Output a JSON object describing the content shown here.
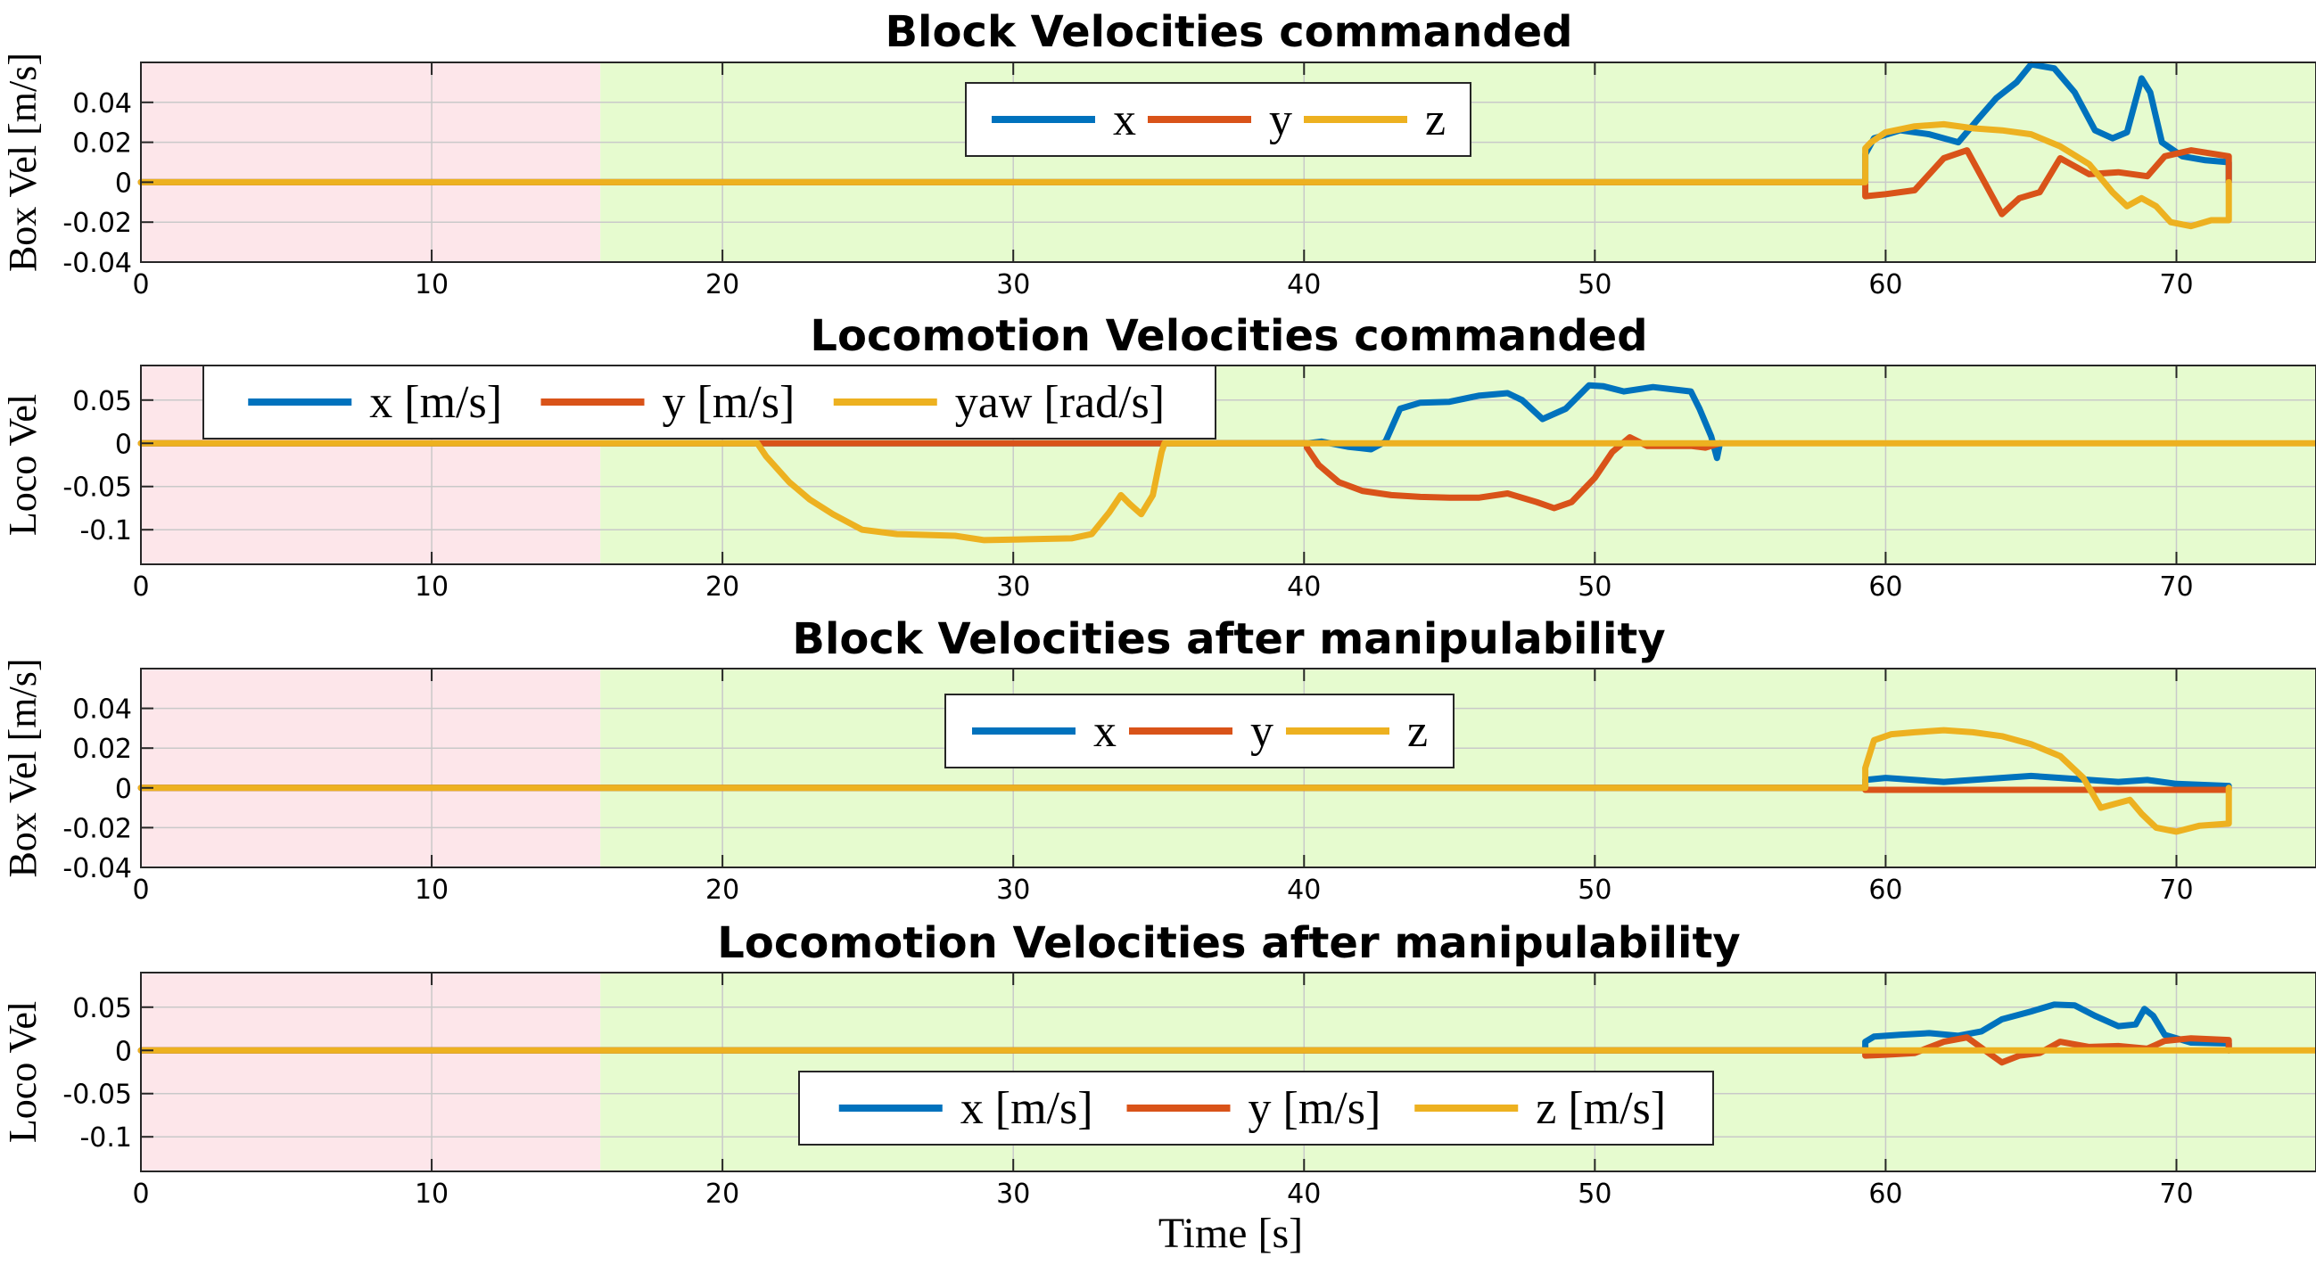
{
  "figure": {
    "xlabel": "Time [s]"
  },
  "colors": {
    "series_x": "#0072BD",
    "series_y": "#D95319",
    "series_z": "#EDB120",
    "region_red": "#FDE6EA",
    "region_green": "#E6FBCF"
  },
  "chart_data": [
    {
      "type": "line",
      "title": "Block Velocities commanded",
      "ylabel": "Box Vel [m/s]",
      "xlabel": "",
      "xlim": [
        0,
        74.8
      ],
      "ylim": [
        -0.04,
        0.06
      ],
      "xticks": [
        0,
        10,
        20,
        30,
        40,
        50,
        60,
        70
      ],
      "yticks": [
        -0.04,
        -0.02,
        0,
        0.02,
        0.04
      ],
      "ytick_labels": [
        "-0.04",
        "-0.02",
        "0",
        "0.02",
        "0.04"
      ],
      "grid": true,
      "legend_position": "top-center",
      "shaded_regions": [
        {
          "x0": 0,
          "x1": 15.8,
          "color": "red"
        },
        {
          "x0": 15.8,
          "x1": 74.8,
          "color": "green"
        }
      ],
      "series": [
        {
          "name": "x",
          "color": "series_x",
          "points": [
            [
              0,
              0
            ],
            [
              59.3,
              0
            ],
            [
              59.3,
              0.014
            ],
            [
              59.6,
              0.022
            ],
            [
              60.5,
              0.026
            ],
            [
              61.5,
              0.024
            ],
            [
              62.5,
              0.02
            ],
            [
              63.2,
              0.032
            ],
            [
              63.8,
              0.042
            ],
            [
              64.5,
              0.05
            ],
            [
              65.0,
              0.059
            ],
            [
              65.8,
              0.057
            ],
            [
              66.5,
              0.045
            ],
            [
              67.2,
              0.026
            ],
            [
              67.8,
              0.022
            ],
            [
              68.3,
              0.025
            ],
            [
              68.8,
              0.052
            ],
            [
              69.1,
              0.045
            ],
            [
              69.5,
              0.02
            ],
            [
              70.2,
              0.013
            ],
            [
              71.0,
              0.011
            ],
            [
              71.8,
              0.01
            ],
            [
              71.8,
              0
            ]
          ]
        },
        {
          "name": "y",
          "color": "series_y",
          "points": [
            [
              0,
              0
            ],
            [
              59.3,
              0
            ],
            [
              59.3,
              -0.007
            ],
            [
              60.0,
              -0.006
            ],
            [
              61.0,
              -0.004
            ],
            [
              62.0,
              0.012
            ],
            [
              62.8,
              0.016
            ],
            [
              63.4,
              0.0
            ],
            [
              64.0,
              -0.016
            ],
            [
              64.6,
              -0.008
            ],
            [
              65.3,
              -0.005
            ],
            [
              66.0,
              0.012
            ],
            [
              67.0,
              0.004
            ],
            [
              68.0,
              0.005
            ],
            [
              69.0,
              0.003
            ],
            [
              69.6,
              0.013
            ],
            [
              70.5,
              0.016
            ],
            [
              71.8,
              0.013
            ],
            [
              71.8,
              0
            ]
          ]
        },
        {
          "name": "z",
          "color": "series_z",
          "points": [
            [
              0,
              0
            ],
            [
              59.3,
              0
            ],
            [
              59.3,
              0.017
            ],
            [
              59.5,
              0.02
            ],
            [
              60.0,
              0.025
            ],
            [
              61.0,
              0.028
            ],
            [
              62.0,
              0.029
            ],
            [
              63.0,
              0.027
            ],
            [
              64.0,
              0.026
            ],
            [
              65.0,
              0.024
            ],
            [
              66.0,
              0.018
            ],
            [
              67.0,
              0.009
            ],
            [
              67.8,
              -0.005
            ],
            [
              68.3,
              -0.012
            ],
            [
              68.8,
              -0.008
            ],
            [
              69.3,
              -0.012
            ],
            [
              69.8,
              -0.02
            ],
            [
              70.5,
              -0.022
            ],
            [
              71.2,
              -0.019
            ],
            [
              71.8,
              -0.019
            ],
            [
              71.8,
              0
            ]
          ]
        }
      ]
    },
    {
      "type": "line",
      "title": "Locomotion Velocities commanded",
      "ylabel": "Loco Vel",
      "xlabel": "",
      "xlim": [
        0,
        74.8
      ],
      "ylim": [
        -0.14,
        0.09
      ],
      "xticks": [
        0,
        10,
        20,
        30,
        40,
        50,
        60,
        70
      ],
      "yticks": [
        -0.1,
        -0.05,
        0,
        0.05
      ],
      "ytick_labels": [
        "-0.1",
        "-0.05",
        "0",
        "0.05"
      ],
      "grid": true,
      "legend_position": "top-left",
      "shaded_regions": [
        {
          "x0": 0,
          "x1": 15.8,
          "color": "red"
        },
        {
          "x0": 15.8,
          "x1": 74.8,
          "color": "green"
        }
      ],
      "series": [
        {
          "name": "x [m/s]",
          "color": "series_x",
          "points": [
            [
              0,
              0
            ],
            [
              40.1,
              0
            ],
            [
              40.6,
              0.002
            ],
            [
              41.5,
              -0.004
            ],
            [
              42.3,
              -0.007
            ],
            [
              42.8,
              0.002
            ],
            [
              43.3,
              0.04
            ],
            [
              44.0,
              0.047
            ],
            [
              45.0,
              0.048
            ],
            [
              46.0,
              0.055
            ],
            [
              47.0,
              0.058
            ],
            [
              47.5,
              0.05
            ],
            [
              48.2,
              0.028
            ],
            [
              49.0,
              0.04
            ],
            [
              49.8,
              0.067
            ],
            [
              50.3,
              0.066
            ],
            [
              51.0,
              0.06
            ],
            [
              52.0,
              0.065
            ],
            [
              53.3,
              0.06
            ],
            [
              53.6,
              0.04
            ],
            [
              54.0,
              0.008
            ],
            [
              54.2,
              -0.017
            ],
            [
              54.3,
              0
            ]
          ]
        },
        {
          "name": "y [m/s]",
          "color": "series_y",
          "points": [
            [
              0,
              0
            ],
            [
              40.1,
              0
            ],
            [
              40.1,
              -0.005
            ],
            [
              40.5,
              -0.025
            ],
            [
              41.2,
              -0.045
            ],
            [
              42.0,
              -0.055
            ],
            [
              43.0,
              -0.06
            ],
            [
              44.0,
              -0.062
            ],
            [
              45.0,
              -0.063
            ],
            [
              46.0,
              -0.063
            ],
            [
              47.0,
              -0.058
            ],
            [
              48.0,
              -0.068
            ],
            [
              48.6,
              -0.075
            ],
            [
              49.2,
              -0.068
            ],
            [
              50.0,
              -0.04
            ],
            [
              50.6,
              -0.01
            ],
            [
              51.2,
              0.007
            ],
            [
              51.8,
              -0.003
            ],
            [
              53.3,
              -0.003
            ],
            [
              53.8,
              -0.005
            ],
            [
              54.3,
              0
            ]
          ]
        },
        {
          "name": "yaw [rad/s]",
          "color": "series_z",
          "points": [
            [
              0,
              0
            ],
            [
              21.2,
              0
            ],
            [
              21.5,
              -0.015
            ],
            [
              22.3,
              -0.045
            ],
            [
              23.0,
              -0.065
            ],
            [
              23.8,
              -0.082
            ],
            [
              24.8,
              -0.1
            ],
            [
              26.0,
              -0.105
            ],
            [
              28.0,
              -0.107
            ],
            [
              29.0,
              -0.112
            ],
            [
              30.5,
              -0.111
            ],
            [
              32.0,
              -0.11
            ],
            [
              32.7,
              -0.105
            ],
            [
              33.3,
              -0.08
            ],
            [
              33.7,
              -0.06
            ],
            [
              34.0,
              -0.07
            ],
            [
              34.4,
              -0.082
            ],
            [
              34.8,
              -0.06
            ],
            [
              35.1,
              -0.01
            ],
            [
              35.2,
              0
            ],
            [
              74.8,
              0
            ]
          ]
        }
      ]
    },
    {
      "type": "line",
      "title": "Block Velocities after manipulability",
      "ylabel": "Box Vel [m/s]",
      "xlabel": "",
      "xlim": [
        0,
        74.8
      ],
      "ylim": [
        -0.04,
        0.06
      ],
      "xticks": [
        0,
        10,
        20,
        30,
        40,
        50,
        60,
        70
      ],
      "yticks": [
        -0.04,
        -0.02,
        0,
        0.02,
        0.04
      ],
      "ytick_labels": [
        "-0.04",
        "-0.02",
        "0",
        "0.02",
        "0.04"
      ],
      "grid": true,
      "legend_position": "top-center",
      "shaded_regions": [
        {
          "x0": 0,
          "x1": 15.8,
          "color": "red"
        },
        {
          "x0": 15.8,
          "x1": 74.8,
          "color": "green"
        }
      ],
      "series": [
        {
          "name": "x",
          "color": "series_x",
          "points": [
            [
              0,
              0
            ],
            [
              59.3,
              0
            ],
            [
              59.3,
              0.004
            ],
            [
              60.0,
              0.005
            ],
            [
              61.0,
              0.004
            ],
            [
              62.0,
              0.003
            ],
            [
              63.0,
              0.004
            ],
            [
              64.0,
              0.005
            ],
            [
              65.0,
              0.006
            ],
            [
              66.0,
              0.005
            ],
            [
              67.0,
              0.004
            ],
            [
              68.0,
              0.003
            ],
            [
              69.0,
              0.004
            ],
            [
              70.0,
              0.002
            ],
            [
              71.8,
              0.001
            ],
            [
              71.8,
              0
            ]
          ]
        },
        {
          "name": "y",
          "color": "series_y",
          "points": [
            [
              0,
              0
            ],
            [
              59.3,
              0
            ],
            [
              59.3,
              -0.001
            ],
            [
              71.8,
              -0.001
            ],
            [
              71.8,
              0
            ]
          ]
        },
        {
          "name": "z",
          "color": "series_z",
          "points": [
            [
              0,
              0
            ],
            [
              59.3,
              0
            ],
            [
              59.3,
              0.01
            ],
            [
              59.6,
              0.024
            ],
            [
              60.2,
              0.027
            ],
            [
              61.0,
              0.028
            ],
            [
              62.0,
              0.029
            ],
            [
              63.0,
              0.028
            ],
            [
              64.0,
              0.026
            ],
            [
              65.0,
              0.022
            ],
            [
              66.0,
              0.016
            ],
            [
              66.8,
              0.005
            ],
            [
              67.4,
              -0.01
            ],
            [
              67.9,
              -0.008
            ],
            [
              68.4,
              -0.006
            ],
            [
              68.8,
              -0.013
            ],
            [
              69.3,
              -0.02
            ],
            [
              70.0,
              -0.022
            ],
            [
              70.8,
              -0.019
            ],
            [
              71.8,
              -0.018
            ],
            [
              71.8,
              0
            ]
          ]
        }
      ]
    },
    {
      "type": "line",
      "title": "Locomotion Velocities after manipulability",
      "ylabel": "Loco Vel",
      "xlabel": "Time [s]",
      "xlim": [
        0,
        74.8
      ],
      "ylim": [
        -0.14,
        0.09
      ],
      "xticks": [
        0,
        10,
        20,
        30,
        40,
        50,
        60,
        70
      ],
      "yticks": [
        -0.1,
        -0.05,
        0,
        0.05
      ],
      "ytick_labels": [
        "-0.1",
        "-0.05",
        "0",
        "0.05"
      ],
      "grid": true,
      "legend_position": "bottom-center",
      "shaded_regions": [
        {
          "x0": 0,
          "x1": 15.8,
          "color": "red"
        },
        {
          "x0": 15.8,
          "x1": 74.8,
          "color": "green"
        }
      ],
      "series": [
        {
          "name": "x [m/s]",
          "color": "series_x",
          "points": [
            [
              0,
              0
            ],
            [
              59.3,
              0
            ],
            [
              59.3,
              0.01
            ],
            [
              59.6,
              0.016
            ],
            [
              60.5,
              0.018
            ],
            [
              61.5,
              0.02
            ],
            [
              62.5,
              0.017
            ],
            [
              63.3,
              0.022
            ],
            [
              64.0,
              0.036
            ],
            [
              65.0,
              0.045
            ],
            [
              65.8,
              0.053
            ],
            [
              66.5,
              0.052
            ],
            [
              67.2,
              0.04
            ],
            [
              68.0,
              0.028
            ],
            [
              68.6,
              0.03
            ],
            [
              68.9,
              0.048
            ],
            [
              69.2,
              0.04
            ],
            [
              69.6,
              0.018
            ],
            [
              70.5,
              0.009
            ],
            [
              71.8,
              0.008
            ],
            [
              71.8,
              0
            ]
          ]
        },
        {
          "name": "y [m/s]",
          "color": "series_y",
          "points": [
            [
              0,
              0
            ],
            [
              59.3,
              0
            ],
            [
              59.3,
              -0.006
            ],
            [
              60.0,
              -0.005
            ],
            [
              61.0,
              -0.003
            ],
            [
              62.0,
              0.01
            ],
            [
              62.8,
              0.015
            ],
            [
              63.5,
              -0.002
            ],
            [
              64.0,
              -0.014
            ],
            [
              64.6,
              -0.006
            ],
            [
              65.3,
              -0.003
            ],
            [
              66.0,
              0.01
            ],
            [
              67.0,
              0.004
            ],
            [
              68.0,
              0.005
            ],
            [
              69.0,
              0.002
            ],
            [
              69.6,
              0.011
            ],
            [
              70.5,
              0.014
            ],
            [
              71.8,
              0.012
            ],
            [
              71.8,
              0
            ]
          ]
        },
        {
          "name": "z [m/s]",
          "color": "series_z",
          "points": [
            [
              0,
              0
            ],
            [
              74.8,
              0
            ]
          ]
        }
      ]
    }
  ]
}
